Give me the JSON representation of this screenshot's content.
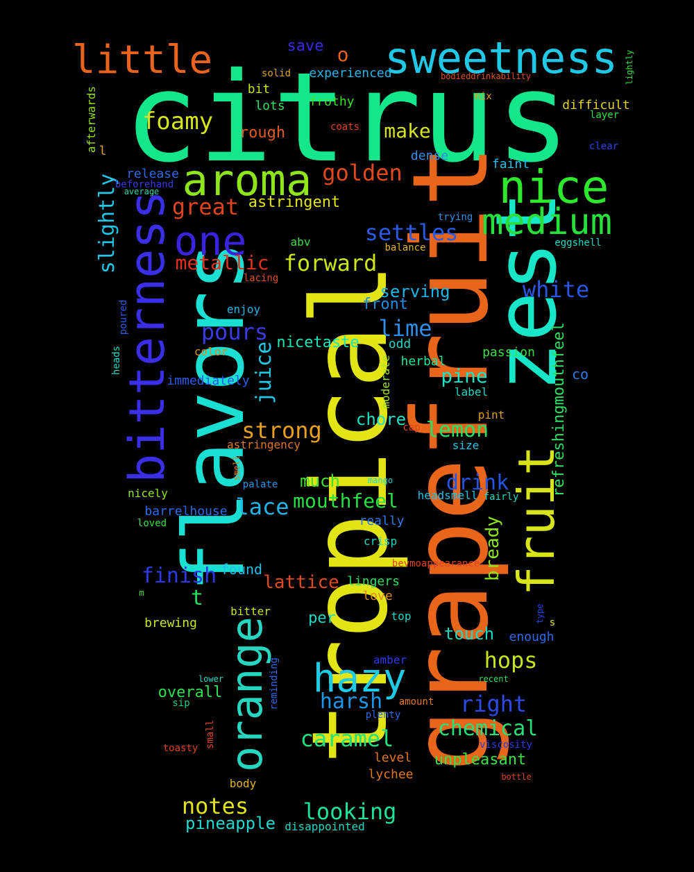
{
  "words": [
    {
      "text": "citrus",
      "color": "#14e68c"
    },
    {
      "text": "tropical",
      "color": "#e2e414"
    },
    {
      "text": "grapefruit",
      "color": "#e8651a"
    },
    {
      "text": "flavors",
      "color": "#19e0d2"
    },
    {
      "text": "zest",
      "color": "#18e6c8"
    },
    {
      "text": "bitterness",
      "color": "#3a2ee6"
    },
    {
      "text": "fruit",
      "color": "#d8e418"
    },
    {
      "text": "orange",
      "color": "#26d6c0"
    },
    {
      "text": "sweetness",
      "color": "#1ec8e6"
    },
    {
      "text": "aroma",
      "color": "#8ee61a"
    },
    {
      "text": "little",
      "color": "#e8641e"
    },
    {
      "text": "nice",
      "color": "#2ee82e"
    },
    {
      "text": "medium",
      "color": "#28e03c"
    },
    {
      "text": "one",
      "color": "#3a24e0"
    },
    {
      "text": "hazy",
      "color": "#1ecbe6"
    },
    {
      "text": "foamy",
      "color": "#d6e41a"
    },
    {
      "text": "golden",
      "color": "#e04a1e"
    },
    {
      "text": "slightly",
      "color": "#22c6e6"
    },
    {
      "text": "great",
      "color": "#e0441e"
    },
    {
      "text": "astringent",
      "color": "#e2e41a"
    },
    {
      "text": "settles",
      "color": "#2a5ae6"
    },
    {
      "text": "metallic",
      "color": "#e0321e"
    },
    {
      "text": "forward",
      "color": "#cce41a"
    },
    {
      "text": "white",
      "color": "#2a56e6"
    },
    {
      "text": "pours",
      "color": "#3a3ae6"
    },
    {
      "text": "juice",
      "color": "#22c8e6"
    },
    {
      "text": "nicetaste",
      "color": "#18e6b4"
    },
    {
      "text": "serving",
      "color": "#1eb6e6"
    },
    {
      "text": "front",
      "color": "#1e8ee6"
    },
    {
      "text": "lime",
      "color": "#2e8ee8"
    },
    {
      "text": "strong",
      "color": "#e8a01e"
    },
    {
      "text": "pine",
      "color": "#1ee2c6"
    },
    {
      "text": "chore",
      "color": "#20e0c8"
    },
    {
      "text": "lemon",
      "color": "#26e066"
    },
    {
      "text": "lace",
      "color": "#22b4e6"
    },
    {
      "text": "mouthfeel",
      "color": "#26e046"
    },
    {
      "text": "drink",
      "color": "#2456e6"
    },
    {
      "text": "much",
      "color": "#40e030"
    },
    {
      "text": "refreshingmouthfeel",
      "color": "#2ee066"
    },
    {
      "text": "bready",
      "color": "#8ee41a"
    },
    {
      "text": "finish",
      "color": "#2e3ae6"
    },
    {
      "text": "found",
      "color": "#22c0e6"
    },
    {
      "text": "lattice",
      "color": "#e04a1e"
    },
    {
      "text": "notes",
      "color": "#e2e41a"
    },
    {
      "text": "looking",
      "color": "#1ee29a"
    },
    {
      "text": "pineapple",
      "color": "#22d6d0"
    },
    {
      "text": "t",
      "color": "#26e05a"
    },
    {
      "text": "hops",
      "color": "#c8e41a"
    },
    {
      "text": "touch",
      "color": "#1ed8be"
    },
    {
      "text": "harsh",
      "color": "#1e96e6"
    },
    {
      "text": "right",
      "color": "#2e4ae6"
    },
    {
      "text": "overall",
      "color": "#2ee050"
    },
    {
      "text": "caramel",
      "color": "#1ee27c"
    },
    {
      "text": "chemical",
      "color": "#26e07a"
    },
    {
      "text": "unpleasant",
      "color": "#36e048"
    },
    {
      "text": "save",
      "color": "#3a2ae0"
    },
    {
      "text": "o",
      "color": "#e8641e"
    },
    {
      "text": "experienced",
      "color": "#1eb6e6"
    },
    {
      "text": "solid",
      "color": "#e0a01e"
    },
    {
      "text": "bodieddrinkability",
      "color": "#e0501e"
    },
    {
      "text": "lightly",
      "color": "#36e048"
    },
    {
      "text": "bit",
      "color": "#c8e41a"
    },
    {
      "text": "frothy",
      "color": "#40e030"
    },
    {
      "text": "lots",
      "color": "#30e068"
    },
    {
      "text": "mix",
      "color": "#e0a01e"
    },
    {
      "text": "difficult",
      "color": "#e0d61e"
    },
    {
      "text": "layer",
      "color": "#28e048"
    },
    {
      "text": "rough",
      "color": "#e05a1e"
    },
    {
      "text": "coats",
      "color": "#e0441e"
    },
    {
      "text": "make",
      "color": "#d8e41a"
    },
    {
      "text": "afterwards",
      "color": "#98e41a"
    },
    {
      "text": "l",
      "color": "#e0a01e"
    },
    {
      "text": "dense",
      "color": "#2e8ee6"
    },
    {
      "text": "clear",
      "color": "#2446e6"
    },
    {
      "text": "release",
      "color": "#2e6ae6"
    },
    {
      "text": "faint",
      "color": "#1ec0e6"
    },
    {
      "text": "beforehand",
      "color": "#3a3ae0"
    },
    {
      "text": "average",
      "color": "#1ed8b0"
    },
    {
      "text": "trying",
      "color": "#2e8ee6"
    },
    {
      "text": "abv",
      "color": "#36e048"
    },
    {
      "text": "balance",
      "color": "#e0b81e"
    },
    {
      "text": "eggshell",
      "color": "#1ed8c6"
    },
    {
      "text": "lacing",
      "color": "#e0501e"
    },
    {
      "text": "poured",
      "color": "#2a5ae6"
    },
    {
      "text": "enjoy",
      "color": "#1eb6e6"
    },
    {
      "text": "heads",
      "color": "#1ed8c6"
    },
    {
      "text": "color",
      "color": "#e08a1e"
    },
    {
      "text": "odd",
      "color": "#1ed8c6"
    },
    {
      "text": "passion",
      "color": "#36e048"
    },
    {
      "text": "herbal",
      "color": "#1ee2a0"
    },
    {
      "text": "moderate",
      "color": "#a8e41a"
    },
    {
      "text": "immediately",
      "color": "#2a5ae6"
    },
    {
      "text": "co",
      "color": "#2e7ae6"
    },
    {
      "text": "label",
      "color": "#1ed8c6"
    },
    {
      "text": "pint",
      "color": "#e0a01e"
    },
    {
      "text": "cap",
      "color": "#e0441e"
    },
    {
      "text": "size",
      "color": "#1ec8e6"
    },
    {
      "text": "astringency",
      "color": "#e0781e"
    },
    {
      "text": "smell",
      "color": "#e0781e"
    },
    {
      "text": "palate",
      "color": "#1e96e6"
    },
    {
      "text": "mango",
      "color": "#1ed8c6"
    },
    {
      "text": "nicely",
      "color": "#98e41a"
    },
    {
      "text": "headsmell",
      "color": "#1ec0e6"
    },
    {
      "text": "fairly",
      "color": "#1ed8c6"
    },
    {
      "text": "barrelhouse",
      "color": "#2e6ae6"
    },
    {
      "text": "loved",
      "color": "#36e048"
    },
    {
      "text": "really",
      "color": "#2e7ae6"
    },
    {
      "text": "crisp",
      "color": "#1ed8c6"
    },
    {
      "text": "bevmoappearance",
      "color": "#e0441e"
    },
    {
      "text": "lingers",
      "color": "#26e066"
    },
    {
      "text": "love",
      "color": "#e08a1e"
    },
    {
      "text": "m",
      "color": "#40e030"
    },
    {
      "text": "bitter",
      "color": "#c8e41a"
    },
    {
      "text": "top",
      "color": "#1ed8c6"
    },
    {
      "text": "type",
      "color": "#2446e6"
    },
    {
      "text": "s",
      "color": "#e2e41a"
    },
    {
      "text": "brewing",
      "color": "#c8e41a"
    },
    {
      "text": "per",
      "color": "#1ed8c6"
    },
    {
      "text": "enough",
      "color": "#2e6ae6"
    },
    {
      "text": "amber",
      "color": "#2e3ae6"
    },
    {
      "text": "reminding",
      "color": "#2e6ae6"
    },
    {
      "text": "lower",
      "color": "#1ed8c6"
    },
    {
      "text": "recent",
      "color": "#26e066"
    },
    {
      "text": "sip",
      "color": "#1ec88a"
    },
    {
      "text": "amount",
      "color": "#e0781e"
    },
    {
      "text": "plenty",
      "color": "#2e6ae6"
    },
    {
      "text": "small",
      "color": "#e0441e"
    },
    {
      "text": "toasty",
      "color": "#e0441e"
    },
    {
      "text": "viscosity",
      "color": "#2e3ae6"
    },
    {
      "text": "level",
      "color": "#e0781e"
    },
    {
      "text": "lychee",
      "color": "#e0781e"
    },
    {
      "text": "bottle",
      "color": "#e0441e"
    },
    {
      "text": "body",
      "color": "#e0b81e"
    },
    {
      "text": "disappointed",
      "color": "#1ed8c6"
    }
  ]
}
